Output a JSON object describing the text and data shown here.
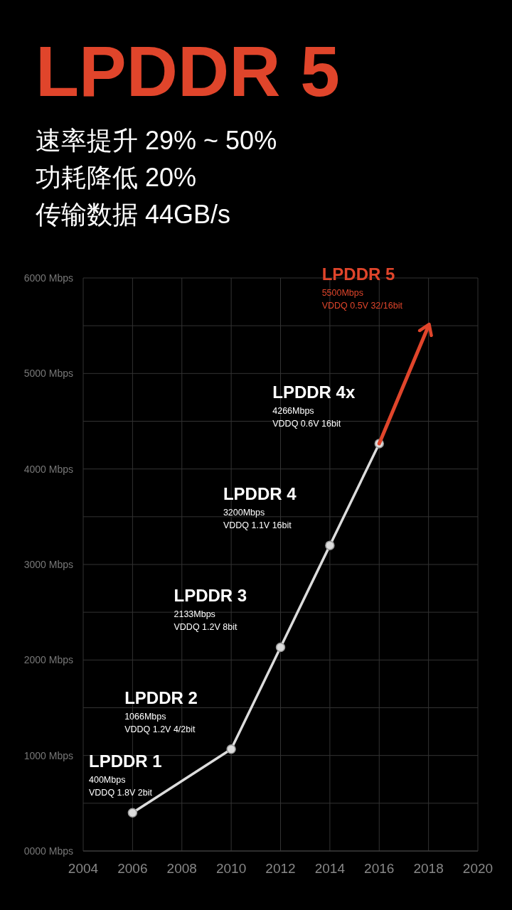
{
  "chart_data": {
    "type": "line",
    "title": "LPDDR 5",
    "subtitle": "速率提升 29% ~ 50%\n功耗降低 20%\n传输数据 44GB/s",
    "xlim": [
      2004,
      2020
    ],
    "xticks": [
      2004,
      2006,
      2008,
      2010,
      2012,
      2014,
      2016,
      2018,
      2020
    ],
    "ylim": [
      0,
      6000
    ],
    "yticks": [
      {
        "value": 0,
        "label": "0000 Mbps"
      },
      {
        "value": 500,
        "label": null
      },
      {
        "value": 1000,
        "label": "1000 Mbps"
      },
      {
        "value": 1500,
        "label": null
      },
      {
        "value": 2000,
        "label": "2000 Mbps"
      },
      {
        "value": 2500,
        "label": null
      },
      {
        "value": 3000,
        "label": "3000 Mbps"
      },
      {
        "value": 3500,
        "label": null
      },
      {
        "value": 4000,
        "label": "4000 Mbps"
      },
      {
        "value": 4500,
        "label": null
      },
      {
        "value": 5000,
        "label": "5000 Mbps"
      },
      {
        "value": 5500,
        "label": null
      },
      {
        "value": 6000,
        "label": "6000 Mbps"
      }
    ],
    "grid": true,
    "series": [
      {
        "color": "#dcdcdc",
        "marker": "circle",
        "x": [
          2006,
          2010,
          2012,
          2014,
          2016
        ],
        "values": [
          400,
          1066,
          2133,
          3200,
          4266
        ]
      },
      {
        "color": "#e0452b",
        "marker": "none",
        "x": [
          2016,
          2018
        ],
        "values": [
          4266,
          5500
        ]
      }
    ],
    "annotations": [
      {
        "text": "LPDDR 1\n400Mbps\nVDDQ 1.8V 2bit",
        "x": 2006,
        "y": 400
      },
      {
        "text": "LPDDR 2\n1066Mbps\nVDDQ 1.2V 4/2bit",
        "x": 2010,
        "y": 1066
      },
      {
        "text": "LPDDR 3\n2133Mbps\nVDDQ 1.2V 8bit",
        "x": 2012,
        "y": 2133
      },
      {
        "text": "LPDDR 4\n3200Mbps\nVDDQ 1.1V 16bit",
        "x": 2014,
        "y": 3200
      },
      {
        "text": "LPDDR 4x\n4266Mbps\nVDDQ 0.6V 16bit",
        "x": 2016,
        "y": 4266
      },
      {
        "text": "LPDDR 5\n5500Mbps\nVDDQ 0.5V 32/16bit",
        "x": 2018,
        "y": 5500
      }
    ]
  }
}
